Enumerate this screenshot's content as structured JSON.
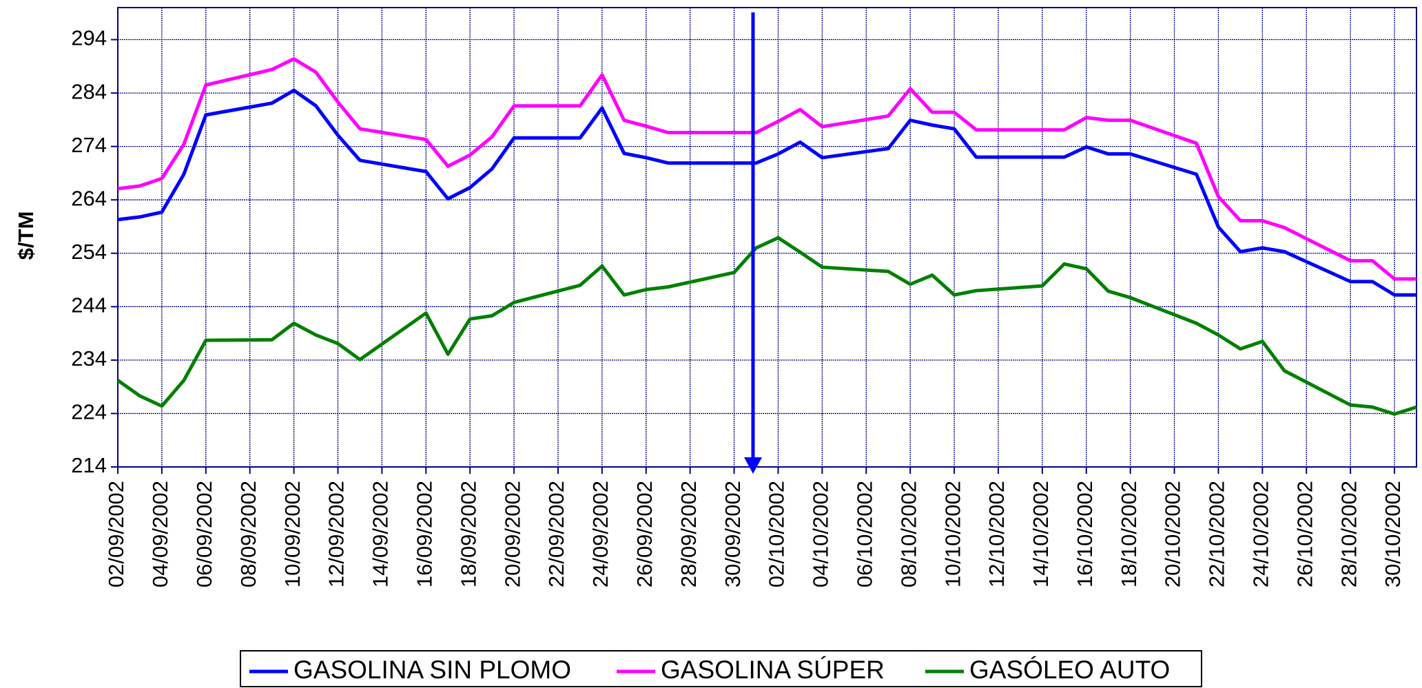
{
  "chart_data": {
    "type": "line",
    "ylabel": "$/TM",
    "x": [
      "02/09/2002",
      "03/09/2002",
      "04/09/2002",
      "05/09/2002",
      "06/09/2002",
      "09/09/2002",
      "10/09/2002",
      "11/09/2002",
      "12/09/2002",
      "13/09/2002",
      "16/09/2002",
      "17/09/2002",
      "18/09/2002",
      "19/09/2002",
      "20/09/2002",
      "23/09/2002",
      "24/09/2002",
      "25/09/2002",
      "26/09/2002",
      "27/09/2002",
      "30/09/2002",
      "01/10/2002",
      "02/10/2002",
      "03/10/2002",
      "04/10/2002",
      "07/10/2002",
      "08/10/2002",
      "09/10/2002",
      "10/10/2002",
      "11/10/2002",
      "14/10/2002",
      "15/10/2002",
      "16/10/2002",
      "17/10/2002",
      "18/10/2002",
      "21/10/2002",
      "22/10/2002",
      "23/10/2002",
      "24/10/2002",
      "25/10/2002",
      "28/10/2002",
      "29/10/2002",
      "30/10/2002",
      "31/10/2002"
    ],
    "series": [
      {
        "name": "GASOLINA SIN PLOMO",
        "color": "#0000ff",
        "values": [
          260.3,
          260.8,
          261.7,
          268.8,
          279.9,
          282.1,
          284.5,
          281.6,
          276.1,
          271.4,
          269.3,
          264.2,
          266.3,
          269.8,
          275.6,
          275.6,
          281.2,
          272.7,
          271.9,
          270.9,
          270.9,
          270.9,
          272.6,
          274.8,
          271.9,
          273.6,
          278.9,
          278.0,
          277.3,
          272.0,
          272.0,
          272.0,
          273.9,
          272.6,
          272.6,
          268.8,
          258.9,
          254.3,
          255.0,
          254.3,
          248.7,
          248.7,
          246.2,
          246.2
        ]
      },
      {
        "name": "GASOLINA SÚPER",
        "color": "#ff00ff",
        "values": [
          266.1,
          266.6,
          268.0,
          274.4,
          285.5,
          288.4,
          290.4,
          287.9,
          282.3,
          277.3,
          275.3,
          270.3,
          272.4,
          275.8,
          281.6,
          281.6,
          287.4,
          278.9,
          277.8,
          276.6,
          276.6,
          276.6,
          278.7,
          280.9,
          277.7,
          279.7,
          284.8,
          280.4,
          280.4,
          277.1,
          277.1,
          277.1,
          279.4,
          278.9,
          278.9,
          274.6,
          264.6,
          260.1,
          260.1,
          258.8,
          252.6,
          252.6,
          249.2,
          249.2
        ]
      },
      {
        "name": "GASÓLEO AUTO",
        "color": "#008000",
        "values": [
          230.2,
          227.3,
          225.4,
          230.2,
          237.7,
          237.8,
          240.9,
          238.7,
          237.1,
          234.1,
          242.8,
          235.1,
          241.7,
          242.3,
          244.8,
          248.0,
          251.6,
          246.2,
          247.2,
          247.7,
          250.4,
          255.0,
          256.9,
          254.2,
          251.4,
          250.6,
          248.2,
          249.9,
          246.2,
          247.0,
          247.9,
          252.0,
          251.1,
          246.9,
          245.7,
          240.9,
          238.7,
          236.1,
          237.5,
          232.0,
          225.6,
          225.2,
          223.9,
          225.2
        ]
      }
    ],
    "xlim": [
      "02/09/2002",
      "31/10/2002"
    ],
    "xticks": [
      "02/09/2002",
      "04/09/2002",
      "06/09/2002",
      "08/09/2002",
      "10/09/2002",
      "12/09/2002",
      "14/09/2002",
      "16/09/2002",
      "18/09/2002",
      "20/09/2002",
      "22/09/2002",
      "24/09/2002",
      "26/09/2002",
      "28/09/2002",
      "30/09/2002",
      "02/10/2002",
      "04/10/2002",
      "06/10/2002",
      "08/10/2002",
      "10/10/2002",
      "12/10/2002",
      "14/10/2002",
      "16/10/2002",
      "18/10/2002",
      "20/10/2002",
      "22/10/2002",
      "24/10/2002",
      "26/10/2002",
      "28/10/2002",
      "30/10/2002"
    ],
    "ylim": [
      214,
      300
    ],
    "yticks": [
      214,
      224,
      234,
      244,
      254,
      264,
      274,
      284,
      294
    ],
    "grid": true,
    "legend": "bottom"
  }
}
